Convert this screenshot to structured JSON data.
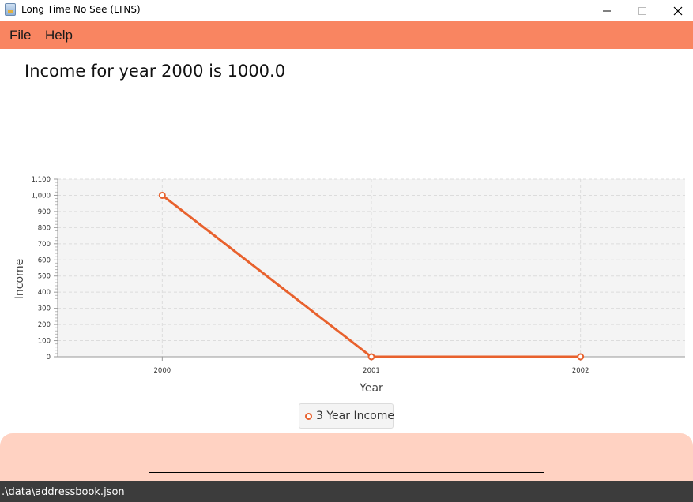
{
  "window": {
    "title": "Long Time No See (LTNS)",
    "icon": "app-icon"
  },
  "menu": {
    "items": [
      {
        "label": "File"
      },
      {
        "label": "Help"
      }
    ]
  },
  "main": {
    "heading": "Income for year 2000 is 1000.0"
  },
  "chart_data": {
    "type": "line",
    "title": "",
    "xlabel": "Year",
    "ylabel": "Income",
    "categories": [
      "2000",
      "2001",
      "2002"
    ],
    "series": [
      {
        "name": "3 Year Income",
        "values": [
          1000,
          0,
          0
        ],
        "color": "#e8612d"
      }
    ],
    "ylim": [
      0,
      1100
    ],
    "yticks": [
      "0",
      "100",
      "200",
      "300",
      "400",
      "500",
      "600",
      "700",
      "800",
      "900",
      "1,000",
      "1,100"
    ],
    "grid": true,
    "legend_placement": "bottom-center"
  },
  "status": {
    "path": ".\\data\\addressbook.json"
  },
  "colors": {
    "accent": "#f98561",
    "series": "#e8612d",
    "panel": "#ffd2c2",
    "statusbar": "#3c3c3c"
  }
}
